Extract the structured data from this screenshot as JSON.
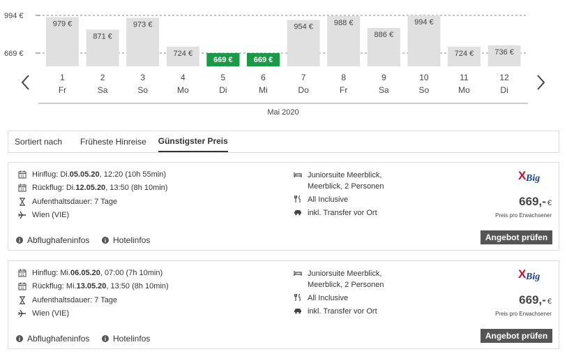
{
  "chart_data": {
    "type": "bar",
    "y_ticks": [
      "994 €",
      "669 €"
    ],
    "y_tick_values": [
      994,
      669
    ],
    "days": [
      {
        "num": "1",
        "dow": "Fr",
        "price": 979,
        "label": "979 €",
        "cheapest": false
      },
      {
        "num": "2",
        "dow": "Sa",
        "price": 871,
        "label": "871 €",
        "cheapest": false
      },
      {
        "num": "3",
        "dow": "So",
        "price": 973,
        "label": "973 €",
        "cheapest": false
      },
      {
        "num": "4",
        "dow": "Mo",
        "price": 724,
        "label": "724 €",
        "cheapest": false
      },
      {
        "num": "5",
        "dow": "Di",
        "price": 669,
        "label": "669 €",
        "cheapest": true
      },
      {
        "num": "6",
        "dow": "Mi",
        "price": 669,
        "label": "669 €",
        "cheapest": true
      },
      {
        "num": "7",
        "dow": "Do",
        "price": 954,
        "label": "954 €",
        "cheapest": false
      },
      {
        "num": "8",
        "dow": "Fr",
        "price": 988,
        "label": "988 €",
        "cheapest": false
      },
      {
        "num": "9",
        "dow": "Sa",
        "price": 886,
        "label": "886 €",
        "cheapest": false
      },
      {
        "num": "10",
        "dow": "So",
        "price": 994,
        "label": "994 €",
        "cheapest": false
      },
      {
        "num": "11",
        "dow": "Mo",
        "price": 724,
        "label": "724 €",
        "cheapest": false
      },
      {
        "num": "12",
        "dow": "Di",
        "price": 736,
        "label": "736 €",
        "cheapest": false
      }
    ],
    "month_label": "Mai 2020",
    "colors": {
      "bar": "#e0e0e0",
      "cheapest": "#1a9a47",
      "label": "#444444",
      "cheapest_label": "#ffffff"
    }
  },
  "icons": {
    "prev": "chevron-left-icon",
    "next": "chevron-right-icon"
  },
  "sort": {
    "label": "Sortiert nach",
    "options": [
      "Früheste Hinreise",
      "Günstigster Preis"
    ],
    "active_index": 1
  },
  "offers": [
    {
      "outbound_prefix": "Hinflug: Di. ",
      "outbound_date": "05.05.20",
      "outbound_suffix": ", 12:20 (10h 55min)",
      "return_prefix": "Rückflug: Di. ",
      "return_date": "12.05.20",
      "return_suffix": ", 13:50 (8h 10min)",
      "duration": "Aufenthaltsdauer: 7 Tage",
      "airport": "Wien (VIE)",
      "room": "Juniorsuite Meerblick, Meerblick, 2 Personen",
      "board": "All Inclusive",
      "transfer": "inkl. Transfer vor Ort",
      "airport_info": "Abflughafeninfos",
      "hotel_info": "Hotelinfos",
      "operator_logo": "XBig",
      "price": "669,-",
      "currency": "€",
      "price_note": "Preis pro Erwachsener",
      "cta": "Angebot prüfen"
    },
    {
      "outbound_prefix": "Hinflug: Mi. ",
      "outbound_date": "06.05.20",
      "outbound_suffix": ", 07:00 (7h 10min)",
      "return_prefix": "Rückflug: Mi. ",
      "return_date": "13.05.20",
      "return_suffix": ", 13:50 (8h 10min)",
      "duration": "Aufenthaltsdauer: 7 Tage",
      "airport": "Wien (VIE)",
      "room": "Juniorsuite Meerblick, Meerblick, 2 Personen",
      "board": "All Inclusive",
      "transfer": "inkl. Transfer vor Ort",
      "airport_info": "Abflughafeninfos",
      "hotel_info": "Hotelinfos",
      "operator_logo": "XBig",
      "price": "669,-",
      "currency": "€",
      "price_note": "Preis pro Erwachsener",
      "cta": "Angebot prüfen"
    }
  ]
}
